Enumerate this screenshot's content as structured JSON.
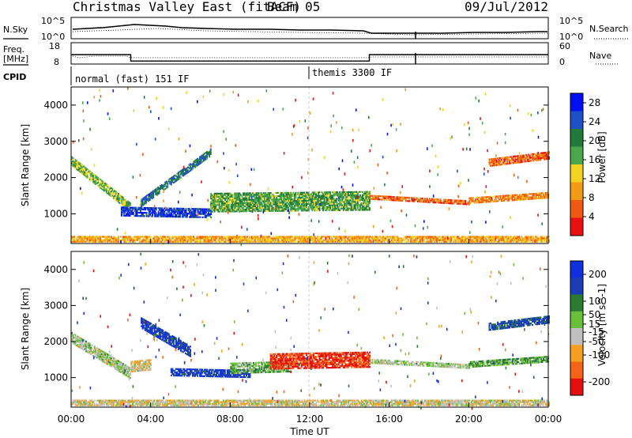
{
  "header": {
    "title": "Christmas Valley East (fitACF)",
    "beam": "Beam 05",
    "date": "09/Jul/2012"
  },
  "top_panels": {
    "nsky_label": "N.Sky",
    "nsearch_label": "N.Search",
    "nsky_ticks": [
      "10^5",
      "10^0"
    ],
    "nsky_right_ticks": [
      "10^5",
      "10^0"
    ],
    "freq_label_1": "Freq.",
    "freq_label_2": "[MHz]",
    "freq_ticks": [
      "18",
      "8"
    ],
    "nave_label": "Nave",
    "nave_ticks": [
      "60",
      "0"
    ],
    "cpid_label": "CPID",
    "cpid_segments": [
      {
        "label": "normal (fast) 151 IF",
        "start_hour": 0,
        "end_hour": 12
      },
      {
        "label": "themis 3300 IF",
        "start_hour": 12,
        "end_hour": 24
      }
    ],
    "freq_steps": [
      {
        "start_hour": 0,
        "end_hour": 3,
        "mhz": 12.4
      },
      {
        "start_hour": 3,
        "end_hour": 15,
        "mhz": 9.4
      },
      {
        "start_hour": 15,
        "end_hour": 24,
        "mhz": 12.4
      }
    ]
  },
  "chart_data": [
    {
      "type": "heatmap",
      "name": "power",
      "ylabel": "Slant Range [km]",
      "xlim": [
        0,
        24
      ],
      "ylim": [
        180,
        4500
      ],
      "yticks": [
        1000,
        2000,
        3000,
        4000
      ],
      "colorbar": {
        "label": "Power [dB]",
        "ticks": [
          "28",
          "24",
          "20",
          "16",
          "12",
          "8",
          "4"
        ],
        "tick_values": [
          28,
          24,
          20,
          16,
          12,
          8,
          4
        ],
        "range": [
          0,
          30
        ],
        "colors": [
          "#0010f0",
          "#1e50c8",
          "#227a3a",
          "#4aa84a",
          "#f2d21e",
          "#f49a14",
          "#f25a10",
          "#e81010"
        ]
      },
      "echo_regions": [
        {
          "hour_start": 0.0,
          "hour_end": 3.0,
          "range_start": 2450,
          "range_end": 1150,
          "width_km": 260,
          "value": 16
        },
        {
          "hour_start": 2.5,
          "hour_end": 7.0,
          "range_start": 1050,
          "range_end": 1000,
          "width_km": 240,
          "value": 26
        },
        {
          "hour_start": 3.5,
          "hour_end": 7.0,
          "range_start": 1300,
          "range_end": 2700,
          "width_km": 220,
          "value": 22
        },
        {
          "hour_start": 7.0,
          "hour_end": 15.0,
          "range_start": 1300,
          "range_end": 1350,
          "width_km": 520,
          "value": 18
        },
        {
          "hour_start": 15.0,
          "hour_end": 20.0,
          "range_start": 1450,
          "range_end": 1300,
          "width_km": 120,
          "value": 6
        },
        {
          "hour_start": 20.0,
          "hour_end": 24.0,
          "range_start": 1350,
          "range_end": 1500,
          "width_km": 150,
          "value": 8
        },
        {
          "hour_start": 21.0,
          "hour_end": 24.0,
          "range_start": 2400,
          "range_end": 2600,
          "width_km": 200,
          "value": 6
        },
        {
          "hour_start": 0.0,
          "hour_end": 24.0,
          "range_start": 300,
          "range_end": 300,
          "width_km": 180,
          "value": 10
        }
      ]
    },
    {
      "type": "heatmap",
      "name": "velocity",
      "ylabel": "Slant Range [km]",
      "xlabel": "Time UT",
      "xlim": [
        0,
        24
      ],
      "ylim": [
        180,
        4500
      ],
      "yticks": [
        1000,
        2000,
        3000,
        4000
      ],
      "xticks": [
        "00:00",
        "04:00",
        "08:00",
        "12:00",
        "16:00",
        "20:00",
        "00:00"
      ],
      "colorbar": {
        "label": "Velocity [m s^-1]",
        "ticks": [
          "200",
          "100",
          "50",
          "15",
          "-15",
          "-50",
          "-100",
          "-200"
        ],
        "tick_values": [
          200,
          100,
          50,
          15,
          -15,
          -50,
          -100,
          -200
        ],
        "range": [
          -250,
          250
        ],
        "colors": [
          "#1030e0",
          "#1a3cb4",
          "#2a7a32",
          "#6abf3a",
          "#c0c0c0",
          "#f4a020",
          "#f46414",
          "#e41010"
        ]
      },
      "echo_regions": [
        {
          "hour_start": 0.0,
          "hour_end": 3.0,
          "range_start": 2100,
          "range_end": 1100,
          "width_km": 300,
          "value": 0
        },
        {
          "hour_start": 3.0,
          "hour_end": 4.0,
          "range_start": 1300,
          "range_end": 1350,
          "width_km": 300,
          "value": -50
        },
        {
          "hour_start": 3.5,
          "hour_end": 6.0,
          "range_start": 2500,
          "range_end": 1700,
          "width_km": 280,
          "value": 180
        },
        {
          "hour_start": 5.0,
          "hour_end": 9.0,
          "range_start": 1150,
          "range_end": 1100,
          "width_km": 220,
          "value": 180
        },
        {
          "hour_start": 8.0,
          "hour_end": 11.0,
          "range_start": 1250,
          "range_end": 1300,
          "width_km": 300,
          "value": 40
        },
        {
          "hour_start": 10.0,
          "hour_end": 15.0,
          "range_start": 1450,
          "range_end": 1500,
          "width_km": 450,
          "value": -200
        },
        {
          "hour_start": 15.0,
          "hour_end": 20.0,
          "range_start": 1450,
          "range_end": 1300,
          "width_km": 120,
          "value": 0
        },
        {
          "hour_start": 20.0,
          "hour_end": 24.0,
          "range_start": 1350,
          "range_end": 1500,
          "width_km": 150,
          "value": 60
        },
        {
          "hour_start": 21.0,
          "hour_end": 24.0,
          "range_start": 2400,
          "range_end": 2600,
          "width_km": 200,
          "value": 150
        },
        {
          "hour_start": 0.0,
          "hour_end": 24.0,
          "range_start": 300,
          "range_end": 300,
          "width_km": 180,
          "value": -40
        }
      ]
    }
  ]
}
